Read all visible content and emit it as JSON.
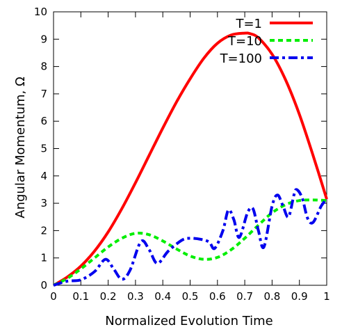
{
  "chart_data": {
    "type": "line",
    "title": "",
    "xlabel": "Normalized Evolution Time",
    "ylabel": "Angular Momentum, Ω",
    "xlim": [
      0,
      1
    ],
    "ylim": [
      0,
      10
    ],
    "xticks": [
      0,
      0.1,
      0.2,
      0.3,
      0.4,
      0.5,
      0.6,
      0.7,
      0.8,
      0.9,
      1
    ],
    "xtick_labels": [
      "0",
      "0.1",
      "0.2",
      "0.3",
      "0.4",
      "0.5",
      "0.6",
      "0.7",
      "0.8",
      "0.9",
      "1"
    ],
    "yticks": [
      0,
      1,
      2,
      3,
      4,
      5,
      6,
      7,
      8,
      9,
      10
    ],
    "ytick_labels": [
      "0",
      "1",
      "2",
      "3",
      "4",
      "5",
      "6",
      "7",
      "8",
      "9",
      "10"
    ],
    "grid": false,
    "legend_position": "top-right",
    "series": [
      {
        "name": "T=1",
        "color": "#ff0000",
        "dash": "solid",
        "x": [
          0,
          0.05,
          0.1,
          0.15,
          0.2,
          0.25,
          0.3,
          0.35,
          0.4,
          0.45,
          0.5,
          0.55,
          0.6,
          0.65,
          0.7,
          0.72,
          0.75,
          0.8,
          0.85,
          0.9,
          0.95,
          1
        ],
        "y": [
          0,
          0.3,
          0.7,
          1.25,
          1.95,
          2.8,
          3.75,
          4.75,
          5.75,
          6.7,
          7.55,
          8.3,
          8.85,
          9.15,
          9.22,
          9.2,
          9.05,
          8.45,
          7.5,
          6.25,
          4.75,
          3.15
        ]
      },
      {
        "name": "T=10",
        "color": "#00ee00",
        "dash": "dashed",
        "x": [
          0,
          0.05,
          0.1,
          0.15,
          0.2,
          0.25,
          0.3,
          0.35,
          0.4,
          0.45,
          0.5,
          0.55,
          0.6,
          0.65,
          0.7,
          0.75,
          0.8,
          0.85,
          0.9,
          0.95,
          1
        ],
        "y": [
          0,
          0.25,
          0.6,
          1.0,
          1.4,
          1.72,
          1.9,
          1.85,
          1.62,
          1.33,
          1.07,
          0.95,
          1.02,
          1.3,
          1.72,
          2.2,
          2.65,
          2.95,
          3.1,
          3.12,
          3.1
        ]
      },
      {
        "name": "T=100",
        "color": "#0000ee",
        "dash": "dash-dot",
        "x": [
          0,
          0.05,
          0.1,
          0.15,
          0.19,
          0.22,
          0.25,
          0.28,
          0.32,
          0.35,
          0.38,
          0.42,
          0.47,
          0.5,
          0.54,
          0.57,
          0.59,
          0.62,
          0.64,
          0.66,
          0.68,
          0.71,
          0.73,
          0.75,
          0.77,
          0.8,
          0.82,
          0.84,
          0.86,
          0.88,
          0.89,
          0.91,
          0.93,
          0.95,
          0.98,
          1
        ],
        "y": [
          0,
          0.15,
          0.2,
          0.5,
          0.95,
          0.6,
          0.22,
          0.55,
          1.6,
          1.3,
          0.8,
          1.25,
          1.65,
          1.72,
          1.68,
          1.58,
          1.35,
          2.0,
          2.75,
          2.4,
          1.75,
          2.65,
          2.8,
          2.0,
          1.4,
          2.9,
          3.3,
          2.9,
          2.5,
          3.3,
          3.5,
          3.2,
          2.45,
          2.3,
          2.9,
          3.15
        ]
      }
    ]
  }
}
